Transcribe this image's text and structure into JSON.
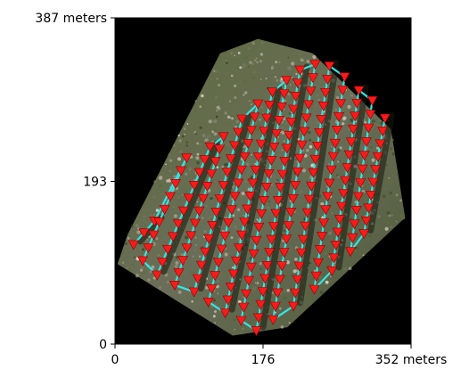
{
  "chart_data": {
    "type": "scatter",
    "title": "",
    "xlabel": "",
    "ylabel": "",
    "xlim": [
      0,
      352
    ],
    "ylim": [
      0,
      387
    ],
    "x_ticks": [
      {
        "value": 0,
        "label": "0"
      },
      {
        "value": 176,
        "label": "176"
      },
      {
        "value": 352,
        "label": "352 meters"
      }
    ],
    "y_ticks": [
      {
        "value": 0,
        "label": "0"
      },
      {
        "value": 193,
        "label": "193"
      },
      {
        "value": 387,
        "label": "387 meters"
      }
    ],
    "background": "aerial orthomosaic of a vegetated field on a black canvas",
    "colors": {
      "marker": "#ff1a1a",
      "marker_edge": "#8b0000",
      "path": "#33e6e6",
      "canvas": "#000000"
    },
    "series": [
      {
        "marker": "downward red triangle",
        "style": "cyan serpentine flight path connecting waypoints in parallel diagonal strips",
        "strips": [
          {
            "x0": 22,
            "y0": 118,
            "x1": 47,
            "y1": 146
          },
          {
            "x0": 33,
            "y0": 99,
            "x1": 85,
            "y1": 221
          },
          {
            "x0": 50,
            "y0": 82,
            "x1": 113,
            "y1": 234
          },
          {
            "x0": 71,
            "y0": 70,
            "x1": 129,
            "y1": 246
          },
          {
            "x0": 94,
            "y0": 62,
            "x1": 151,
            "y1": 267
          },
          {
            "x0": 111,
            "y0": 50,
            "x1": 170,
            "y1": 285
          },
          {
            "x0": 131,
            "y0": 37,
            "x1": 187,
            "y1": 299
          },
          {
            "x0": 150,
            "y0": 28,
            "x1": 204,
            "y1": 313
          },
          {
            "x0": 168,
            "y0": 16,
            "x1": 220,
            "y1": 325
          },
          {
            "x0": 188,
            "y0": 29,
            "x1": 238,
            "y1": 332
          },
          {
            "x0": 212,
            "y0": 45,
            "x1": 255,
            "y1": 330
          },
          {
            "x0": 237,
            "y0": 65,
            "x1": 273,
            "y1": 317
          },
          {
            "x0": 258,
            "y0": 87,
            "x1": 290,
            "y1": 301
          },
          {
            "x0": 280,
            "y0": 110,
            "x1": 306,
            "y1": 289
          },
          {
            "x0": 296,
            "y0": 131,
            "x1": 321,
            "y1": 268
          }
        ]
      }
    ]
  }
}
